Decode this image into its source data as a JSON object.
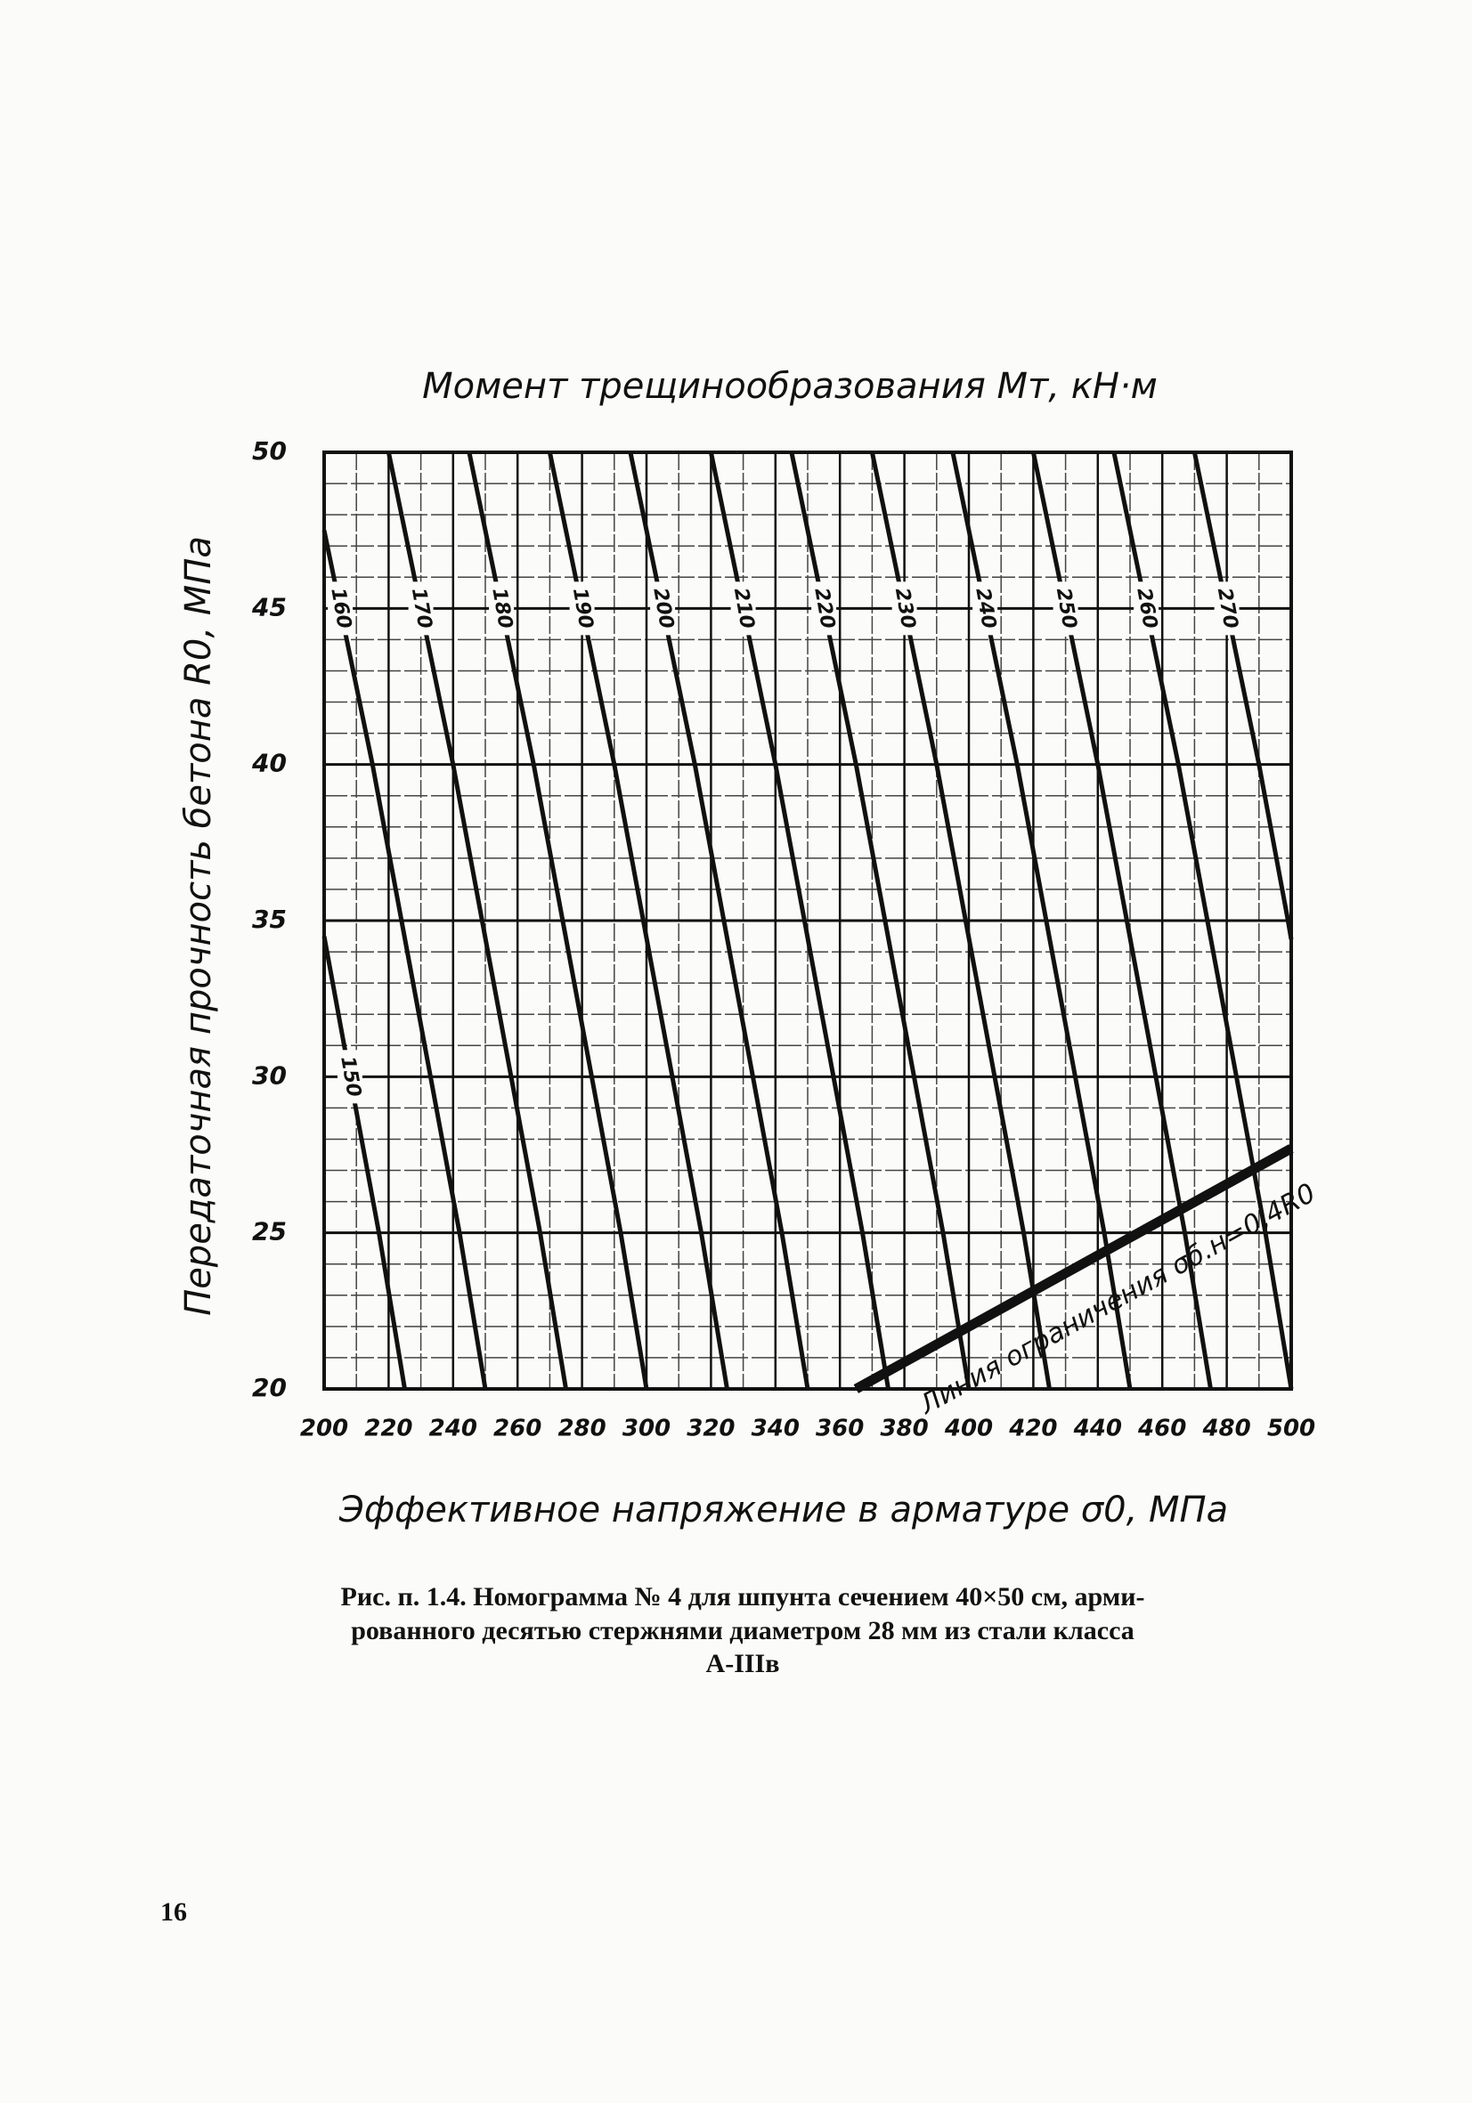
{
  "chart_data": {
    "type": "nomogram",
    "title": "Момент трещинообразования Mт, кН·м",
    "xlabel": "Эффективное напряжение в арматуре σ0, МПа",
    "ylabel": "Передаточная прочность бетона R0, МПа",
    "xlim": [
      200,
      500
    ],
    "ylim": [
      20,
      50
    ],
    "xticks": [
      200,
      220,
      240,
      260,
      280,
      300,
      320,
      340,
      360,
      380,
      400,
      420,
      440,
      460,
      480,
      500
    ],
    "yticks": [
      20,
      25,
      30,
      35,
      40,
      45,
      50
    ],
    "grid": true,
    "x_minor_divisions": 2,
    "y_minor_divisions": 5,
    "color": "#111111",
    "series": [
      {
        "name": "150",
        "x": [
          200,
          208,
          217,
          225
        ],
        "y": [
          34.5,
          30,
          25,
          20
        ]
      },
      {
        "name": "160",
        "x": [
          200,
          205,
          215,
          224,
          233,
          242,
          250
        ],
        "y": [
          47.5,
          45,
          40,
          35,
          30,
          25,
          20
        ]
      },
      {
        "name": "170",
        "x": [
          220,
          230,
          240,
          249,
          258,
          267,
          275
        ],
        "y": [
          50,
          45,
          40,
          35,
          30,
          25,
          20
        ]
      },
      {
        "name": "180",
        "x": [
          245,
          255,
          265,
          274,
          283,
          292,
          300
        ],
        "y": [
          50,
          45,
          40,
          35,
          30,
          25,
          20
        ]
      },
      {
        "name": "190",
        "x": [
          270,
          280,
          290,
          299,
          308,
          317,
          325
        ],
        "y": [
          50,
          45,
          40,
          35,
          30,
          25,
          20
        ]
      },
      {
        "name": "200",
        "x": [
          295,
          305,
          315,
          324,
          333,
          342,
          350
        ],
        "y": [
          50,
          45,
          40,
          35,
          30,
          25,
          20
        ]
      },
      {
        "name": "210",
        "x": [
          320,
          330,
          340,
          349,
          358,
          367,
          375
        ],
        "y": [
          50,
          45,
          40,
          35,
          30,
          25,
          20
        ]
      },
      {
        "name": "220",
        "x": [
          345,
          355,
          365,
          374,
          383,
          392,
          400
        ],
        "y": [
          50,
          45,
          40,
          35,
          30,
          25,
          20
        ]
      },
      {
        "name": "230",
        "x": [
          370,
          380,
          390,
          399,
          408,
          417,
          425
        ],
        "y": [
          50,
          45,
          40,
          35,
          30,
          25,
          20
        ]
      },
      {
        "name": "240",
        "x": [
          395,
          405,
          415,
          424,
          433,
          442,
          450
        ],
        "y": [
          50,
          45,
          40,
          35,
          30,
          25,
          20
        ]
      },
      {
        "name": "250",
        "x": [
          420,
          430,
          440,
          449,
          458,
          467,
          475
        ],
        "y": [
          50,
          45,
          40,
          35,
          30,
          25,
          20
        ]
      },
      {
        "name": "260",
        "x": [
          445,
          455,
          465,
          474,
          483,
          492,
          500
        ],
        "y": [
          50,
          45,
          40,
          35,
          30,
          25,
          20
        ]
      },
      {
        "name": "270",
        "x": [
          470,
          480,
          490,
          499,
          500
        ],
        "y": [
          50,
          45,
          40,
          35,
          34.4
        ]
      }
    ],
    "constraint": {
      "label": "Линия ограничения σб.н=0,4R0",
      "x": [
        365,
        500
      ],
      "y": [
        20,
        27.7
      ]
    }
  },
  "caption": {
    "lines": [
      "Рис. п. 1.4. Номограмма № 4 для шпунта сечением 40×50 см, арми-",
      "рованного десятью стержнями диаметром 28 мм из стали класса",
      "А-IIIв"
    ]
  },
  "page_number": "16"
}
